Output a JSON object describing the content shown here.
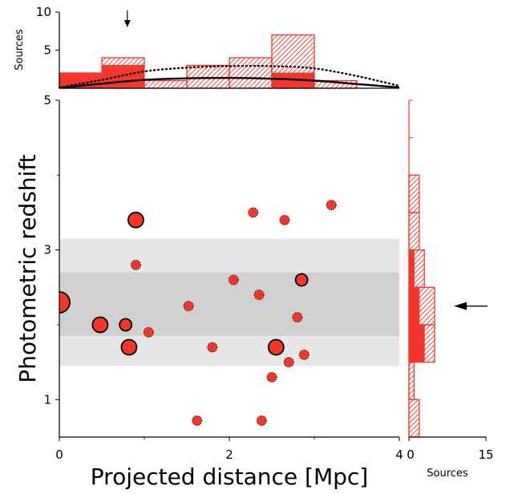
{
  "colors": {
    "accent": "#f4372a",
    "band_outer": "#e6e6e6",
    "band_inner": "#d0d0d0",
    "axis": "#000000"
  },
  "chart_data": [
    {
      "panel": "main",
      "type": "scatter",
      "xlabel": "Projected distance [Mpc]",
      "ylabel": "Photometric redshift",
      "xlim": [
        0,
        4
      ],
      "ylim": [
        0.5,
        5
      ],
      "xticks": [
        "0",
        "2",
        "4"
      ],
      "yticks": [
        "1",
        "3",
        "5"
      ],
      "bands": [
        {
          "name": "outer",
          "y": [
            1.45,
            3.15
          ]
        },
        {
          "name": "inner",
          "y": [
            1.85,
            2.7
          ]
        }
      ],
      "points": [
        {
          "x": 0.0,
          "y": 2.3,
          "size": "xl",
          "outline": "solid"
        },
        {
          "x": 0.48,
          "y": 2.0,
          "size": "l",
          "outline": "solid"
        },
        {
          "x": 0.78,
          "y": 2.0,
          "size": "m",
          "outline": "solid"
        },
        {
          "x": 0.82,
          "y": 1.7,
          "size": "l",
          "outline": "solid"
        },
        {
          "x": 0.9,
          "y": 3.4,
          "size": "l",
          "outline": "solid"
        },
        {
          "x": 0.9,
          "y": 2.8,
          "size": "s",
          "outline": "dotted"
        },
        {
          "x": 1.05,
          "y": 1.9,
          "size": "s",
          "outline": "dotted"
        },
        {
          "x": 1.52,
          "y": 2.25,
          "size": "s",
          "outline": "dotted"
        },
        {
          "x": 1.62,
          "y": 0.72,
          "size": "s",
          "outline": "dotted"
        },
        {
          "x": 1.8,
          "y": 1.7,
          "size": "s",
          "outline": "dotted"
        },
        {
          "x": 2.05,
          "y": 2.6,
          "size": "s",
          "outline": "dotted"
        },
        {
          "x": 2.28,
          "y": 3.5,
          "size": "s",
          "outline": "dotted"
        },
        {
          "x": 2.35,
          "y": 2.4,
          "size": "s",
          "outline": "dotted"
        },
        {
          "x": 2.38,
          "y": 0.72,
          "size": "s",
          "outline": "dotted"
        },
        {
          "x": 2.5,
          "y": 1.3,
          "size": "s",
          "outline": "dotted"
        },
        {
          "x": 2.55,
          "y": 1.7,
          "size": "l",
          "outline": "solid"
        },
        {
          "x": 2.65,
          "y": 3.4,
          "size": "s",
          "outline": "dotted"
        },
        {
          "x": 2.7,
          "y": 1.5,
          "size": "s",
          "outline": "dotted"
        },
        {
          "x": 2.8,
          "y": 2.1,
          "size": "s",
          "outline": "dotted"
        },
        {
          "x": 2.85,
          "y": 2.6,
          "size": "m",
          "outline": "solid"
        },
        {
          "x": 2.88,
          "y": 1.6,
          "size": "s",
          "outline": "dotted"
        },
        {
          "x": 3.2,
          "y": 3.6,
          "size": "s",
          "outline": "dotted"
        }
      ],
      "arrow_at_y": 2.25
    },
    {
      "panel": "top",
      "type": "bar",
      "ylabel": "Sources",
      "ylim": [
        0,
        10
      ],
      "yticks": [
        "5",
        "10"
      ],
      "bin_edges": [
        0,
        0.5,
        1.0,
        1.5,
        2.0,
        2.5,
        3.0,
        3.5
      ],
      "solid_values": [
        2,
        3,
        0,
        0,
        0,
        2,
        0
      ],
      "hatched_values": [
        2,
        4,
        1,
        3,
        4,
        7,
        1
      ],
      "curve_dotted": [
        [
          0,
          0.1
        ],
        [
          0.5,
          1.1
        ],
        [
          1.0,
          2.2
        ],
        [
          1.5,
          2.7
        ],
        [
          2.0,
          2.9
        ],
        [
          2.5,
          2.9
        ],
        [
          3.0,
          2.6
        ],
        [
          3.5,
          1.6
        ],
        [
          4.0,
          0.3
        ]
      ],
      "curve_solid": [
        [
          0,
          0.05
        ],
        [
          0.5,
          0.6
        ],
        [
          1.0,
          1.1
        ],
        [
          1.5,
          1.3
        ],
        [
          2.0,
          1.35
        ],
        [
          2.5,
          1.25
        ],
        [
          3.0,
          1.0
        ],
        [
          3.5,
          0.55
        ],
        [
          4.0,
          0.1
        ]
      ],
      "arrow_at_x": 0.8
    },
    {
      "panel": "right",
      "type": "bar",
      "orientation": "horizontal",
      "xlabel": "Sources",
      "xlim": [
        0,
        15
      ],
      "xticks": [
        "0",
        "15"
      ],
      "bin_edges": [
        0.5,
        1.0,
        1.5,
        2.0,
        2.5,
        3.0,
        3.5,
        4.0
      ],
      "solid_values": [
        0,
        0,
        3,
        2,
        1,
        0,
        0
      ],
      "hatched_values": [
        2,
        1,
        5,
        5,
        3,
        2,
        2
      ]
    }
  ]
}
